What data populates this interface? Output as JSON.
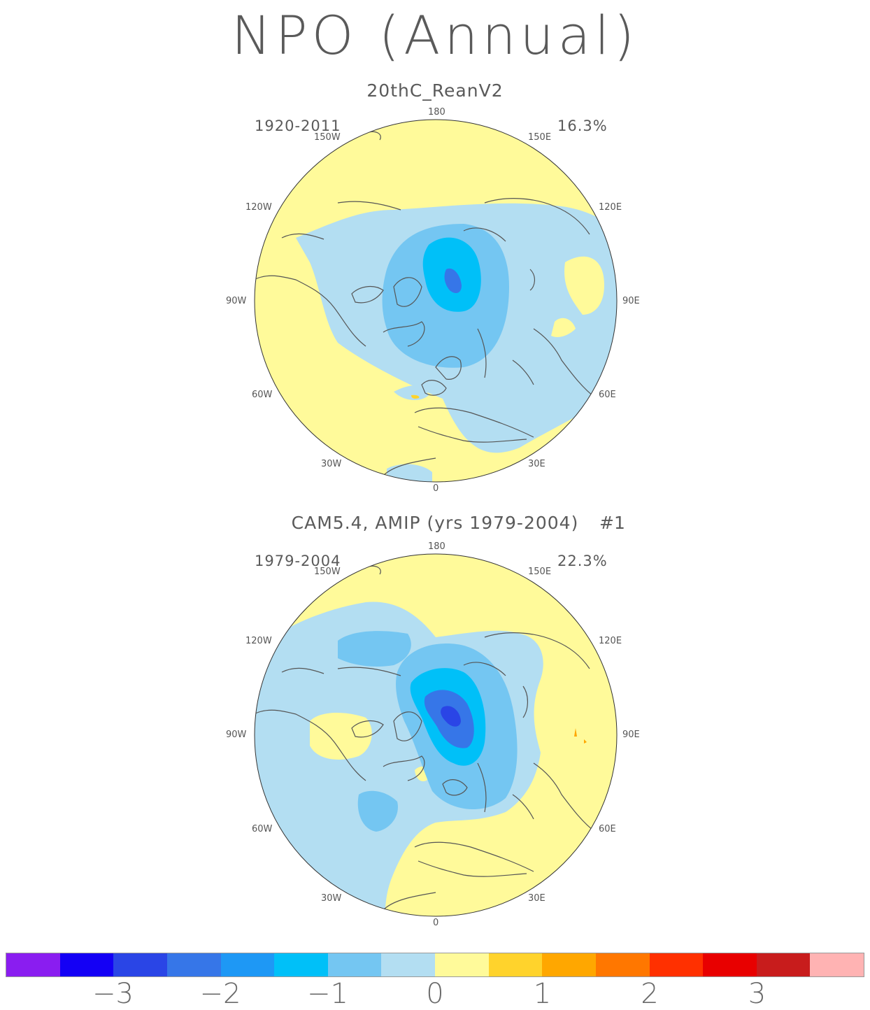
{
  "title": "NPO (Annual)",
  "panels": [
    {
      "title": "20thC_ReanV2",
      "years": "1920-2011",
      "percent": "16.3%",
      "tag": ""
    },
    {
      "title": "CAM5.4, AMIP (yrs 1979-2004)",
      "years": "1979-2004",
      "percent": "22.3%",
      "tag": "#1"
    }
  ],
  "lon_labels": {
    "l180": "180",
    "l150w": "150W",
    "l150e": "150E",
    "l120w": "120W",
    "l120e": "120E",
    "l90w": "90W",
    "l90e": "90E",
    "l60w": "60W",
    "l60e": "60E",
    "l30w": "30W",
    "l30e": "30E",
    "l0": "0"
  },
  "colorbar": {
    "colors": [
      "#8a1df0",
      "#1400f5",
      "#2a45e6",
      "#3676e8",
      "#1e98f5",
      "#00c0f8",
      "#74c6f2",
      "#b3def2",
      "#fffa9a",
      "#ffd32c",
      "#ffa700",
      "#ff7700",
      "#ff3000",
      "#e80000",
      "#c81c1c",
      "#ffb3b3"
    ],
    "labels": [
      "-3",
      "-2",
      "-1",
      "0",
      "1",
      "2",
      "3"
    ]
  }
}
